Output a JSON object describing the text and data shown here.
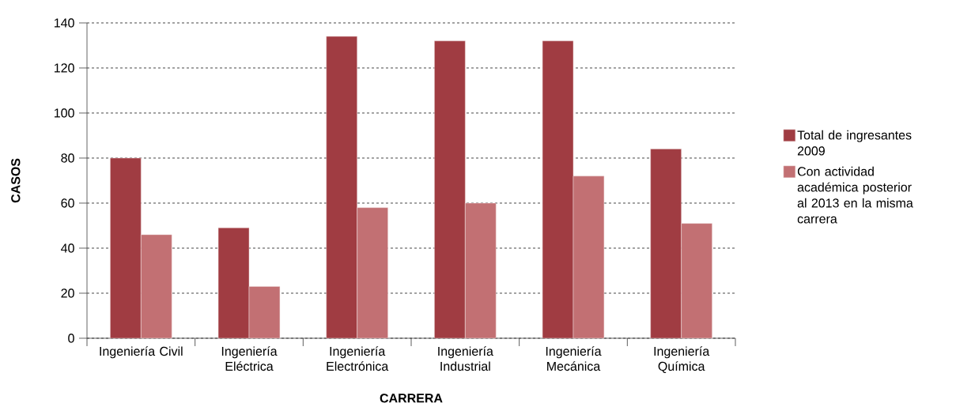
{
  "chart_data": {
    "type": "bar",
    "xlabel": "CARRERA",
    "ylabel": "CASOS",
    "categories": [
      "Ingeniería Civil",
      "Ingeniería Eléctrica",
      "Ingeniería Electrónica",
      "Ingeniería Industrial",
      "Ingeniería Mecánica",
      "Ingeniería Química"
    ],
    "series": [
      {
        "name": "Total de ingresantes 2009",
        "color": "#a03c42",
        "values": [
          80,
          49,
          134,
          132,
          132,
          84
        ]
      },
      {
        "name": "Con actividad académica posterior al 2013 en la misma carrera",
        "color": "#c27073",
        "values": [
          46,
          23,
          58,
          60,
          72,
          51
        ]
      }
    ],
    "ylim": [
      0,
      140
    ],
    "yticks": [
      0,
      20,
      40,
      60,
      80,
      100,
      120,
      140
    ],
    "grid": "y",
    "legend": "right"
  }
}
